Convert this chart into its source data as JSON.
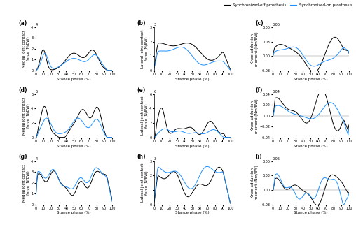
{
  "legend_labels": [
    "Synchronized-off prosthesis",
    "Synchronized-on prosthesis"
  ],
  "legend_colors": [
    "#000000",
    "#1e90ff"
  ],
  "line_color_off": "#000000",
  "line_color_on": "#1e90ff",
  "subplot_labels": [
    "(a)",
    "(b)",
    "(c)",
    "(d)",
    "(e)",
    "(f)",
    "(g)",
    "(h)",
    "(i)"
  ],
  "ylabels": [
    "Medial joint contact\nforce (N/BW)",
    "Lateral joint contact\nforce (N/BW)",
    "Knee adduction\nmoment (Nm/BW)",
    "Medial joint contact\nforce (N/BW)",
    "Lateral joint contact\nforce (N/BW)",
    "Knee adduction\nmoment (Nm/BW)",
    "Medial joint contact\nforce (N/BW)",
    "Lateral joint contact\nforce (N/BW)",
    "Knee adduction\nmoment (Nm/BW)"
  ],
  "xlabel": "Stance phase (%)",
  "ytops": [
    4,
    3,
    0.06,
    6,
    6,
    0.04,
    4,
    3,
    0.06
  ],
  "ybottoms": [
    0,
    0,
    -0.03,
    0,
    0,
    -0.04,
    0,
    0,
    -0.03
  ],
  "yticks_a": [
    0,
    1,
    2,
    3,
    4
  ],
  "yticks_b": [
    0,
    1,
    2,
    3
  ],
  "yticks_c": [
    -0.03,
    0,
    0.03,
    0.06
  ],
  "yticks_d": [
    0,
    2,
    4,
    6
  ],
  "yticks_e": [
    0,
    2,
    4,
    6
  ],
  "yticks_f": [
    -0.04,
    -0.02,
    0,
    0.02,
    0.04
  ],
  "yticks_g": [
    0,
    1,
    2,
    3,
    4
  ],
  "yticks_h": [
    0,
    1,
    2,
    3
  ],
  "yticks_i": [
    -0.03,
    0,
    0.03,
    0.06
  ]
}
